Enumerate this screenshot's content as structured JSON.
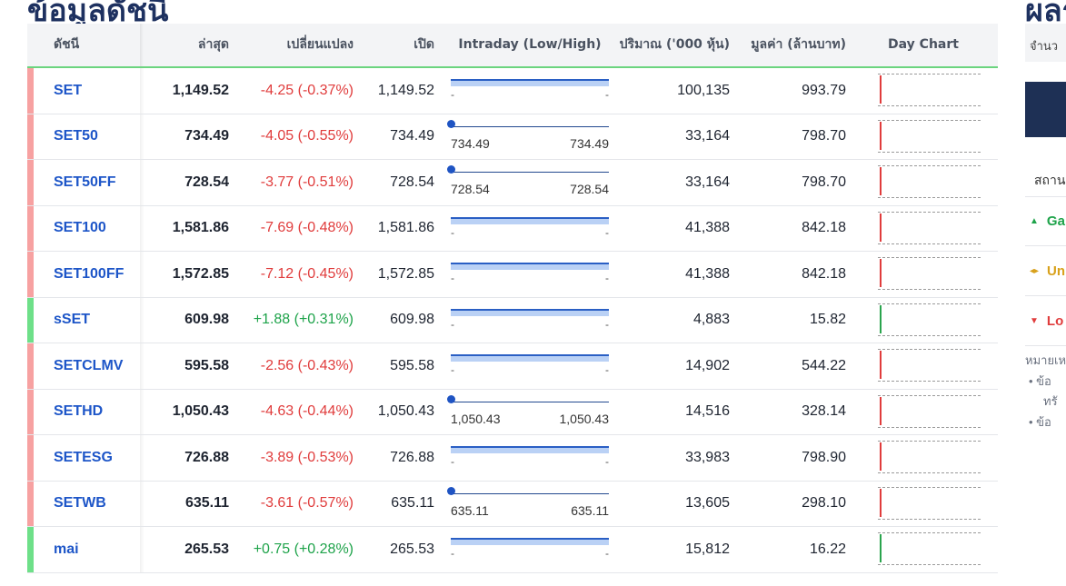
{
  "heading": "ข้อมูลดัชนี",
  "right_heading": "ผลร",
  "table": {
    "headers": {
      "index": "ดัชนี",
      "last": "ล่าสุด",
      "change": "เปลี่ยนแปลง",
      "open": "เปิด",
      "intraday": "Intraday (Low/High)",
      "volume": "ปริมาณ ('000 หุ้น)",
      "value": "มูลค่า (ล้านบาท)",
      "daychart": "Day Chart"
    },
    "rows": [
      {
        "name": "SET",
        "last": "1,149.52",
        "change": "-4.25 (-0.37%)",
        "open": "1,149.52",
        "low": "-",
        "high": "-",
        "volume": "100,135",
        "value": "993.79",
        "direction": "down",
        "range": "band"
      },
      {
        "name": "SET50",
        "last": "734.49",
        "change": "-4.05 (-0.55%)",
        "open": "734.49",
        "low": "734.49",
        "high": "734.49",
        "volume": "33,164",
        "value": "798.70",
        "direction": "down",
        "range": "dot"
      },
      {
        "name": "SET50FF",
        "last": "728.54",
        "change": "-3.77 (-0.51%)",
        "open": "728.54",
        "low": "728.54",
        "high": "728.54",
        "volume": "33,164",
        "value": "798.70",
        "direction": "down",
        "range": "dot"
      },
      {
        "name": "SET100",
        "last": "1,581.86",
        "change": "-7.69 (-0.48%)",
        "open": "1,581.86",
        "low": "-",
        "high": "-",
        "volume": "41,388",
        "value": "842.18",
        "direction": "down",
        "range": "band"
      },
      {
        "name": "SET100FF",
        "last": "1,572.85",
        "change": "-7.12 (-0.45%)",
        "open": "1,572.85",
        "low": "-",
        "high": "-",
        "volume": "41,388",
        "value": "842.18",
        "direction": "down",
        "range": "band"
      },
      {
        "name": "sSET",
        "last": "609.98",
        "change": "+1.88 (+0.31%)",
        "open": "609.98",
        "low": "-",
        "high": "-",
        "volume": "4,883",
        "value": "15.82",
        "direction": "up",
        "range": "band"
      },
      {
        "name": "SETCLMV",
        "last": "595.58",
        "change": "-2.56 (-0.43%)",
        "open": "595.58",
        "low": "-",
        "high": "-",
        "volume": "14,902",
        "value": "544.22",
        "direction": "down",
        "range": "band"
      },
      {
        "name": "SETHD",
        "last": "1,050.43",
        "change": "-4.63 (-0.44%)",
        "open": "1,050.43",
        "low": "1,050.43",
        "high": "1,050.43",
        "volume": "14,516",
        "value": "328.14",
        "direction": "down",
        "range": "dot"
      },
      {
        "name": "SETESG",
        "last": "726.88",
        "change": "-3.89 (-0.53%)",
        "open": "726.88",
        "low": "-",
        "high": "-",
        "volume": "33,983",
        "value": "798.90",
        "direction": "down",
        "range": "band"
      },
      {
        "name": "SETWB",
        "last": "635.11",
        "change": "-3.61 (-0.57%)",
        "open": "635.11",
        "low": "635.11",
        "high": "635.11",
        "volume": "13,605",
        "value": "298.10",
        "direction": "down",
        "range": "dot"
      },
      {
        "name": "mai",
        "last": "265.53",
        "change": "+0.75 (+0.28%)",
        "open": "265.53",
        "low": "-",
        "high": "-",
        "volume": "15,812",
        "value": "16.22",
        "direction": "up",
        "range": "band"
      }
    ]
  },
  "colors": {
    "down": "#e03c3c",
    "up": "#1ea34a",
    "link": "#1e56c8",
    "heading": "#1e3160"
  },
  "side_panel": {
    "top_label": "จำนว",
    "status_label": "สถาน",
    "gain_label": "Ga",
    "gain_icon": "triangle-up-icon",
    "unchanged_label": "Un",
    "unchanged_icon": "diamond-arrows-icon",
    "loss_label": "Lo",
    "loss_icon": "triangle-down-icon",
    "note_label": "หมายเห",
    "bullet_1a": "ข้อ",
    "bullet_1b": "ทรั",
    "bullet_2": "ข้อ"
  }
}
